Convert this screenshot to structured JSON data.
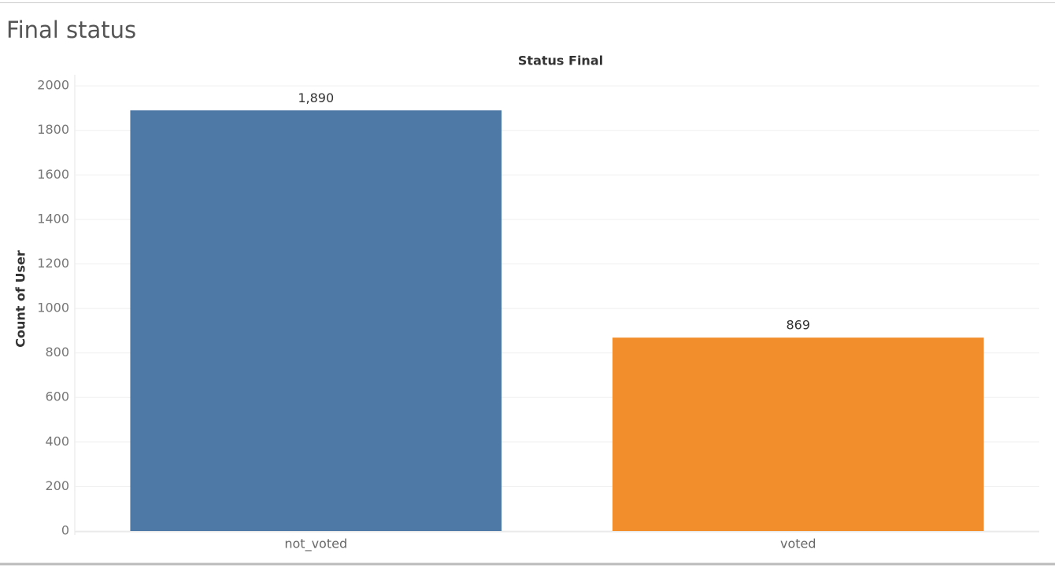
{
  "chart_data": {
    "type": "bar",
    "title": "Final status",
    "header": "Status Final",
    "y_label": "Count of User",
    "categories": [
      "not_voted",
      "voted"
    ],
    "values": [
      1890,
      869
    ],
    "value_labels": [
      "1,890",
      "869"
    ],
    "colors": [
      "#4e79a7",
      "#f28e2b"
    ],
    "ylim": [
      0,
      2050
    ],
    "yticks": [
      0,
      200,
      400,
      600,
      800,
      1000,
      1200,
      1400,
      1600,
      1800,
      2000
    ],
    "grid": true
  }
}
